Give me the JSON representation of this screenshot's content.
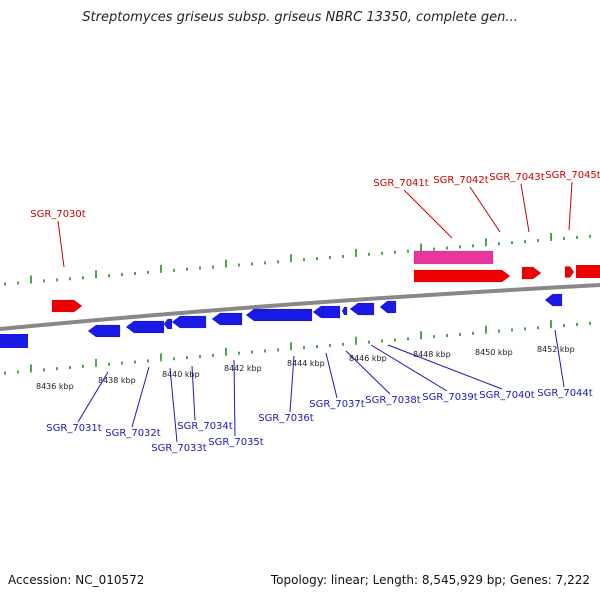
{
  "title": "Streptomyces griseus subsp. griseus NBRC 13350, complete gen...",
  "footer": {
    "accession": "Accession: NC_010572",
    "topology": "Topology: linear; Length: 8,545,929 bp; Genes: 7,222"
  },
  "colors": {
    "forward_gene": "#ee0000",
    "reverse_gene": "#1a1ae6",
    "rna_gene": "#e8379c",
    "forward_label": "#cc0000",
    "reverse_label": "#1a1ab4",
    "tick": "#118811",
    "backbone": "#888888"
  },
  "tick_labels": [
    "8436 kbp",
    "8438 kbp",
    "8440 kbp",
    "8442 kbp",
    "8444 kbp",
    "8446 kbp",
    "8448 kbp",
    "8450 kbp",
    "8452 kbp"
  ],
  "forward_labels": [
    "SGR_7030t",
    "SGR_7041t",
    "SGR_7042t",
    "SGR_7043t",
    "SGR_7045t"
  ],
  "reverse_labels": [
    "SGR_7031t",
    "SGR_7032t",
    "SGR_7033t",
    "SGR_7034t",
    "SGR_7035t",
    "SGR_7036t",
    "SGR_7037t",
    "SGR_7038t",
    "SGR_7039t",
    "SGR_7040t",
    "SGR_7044t"
  ]
}
